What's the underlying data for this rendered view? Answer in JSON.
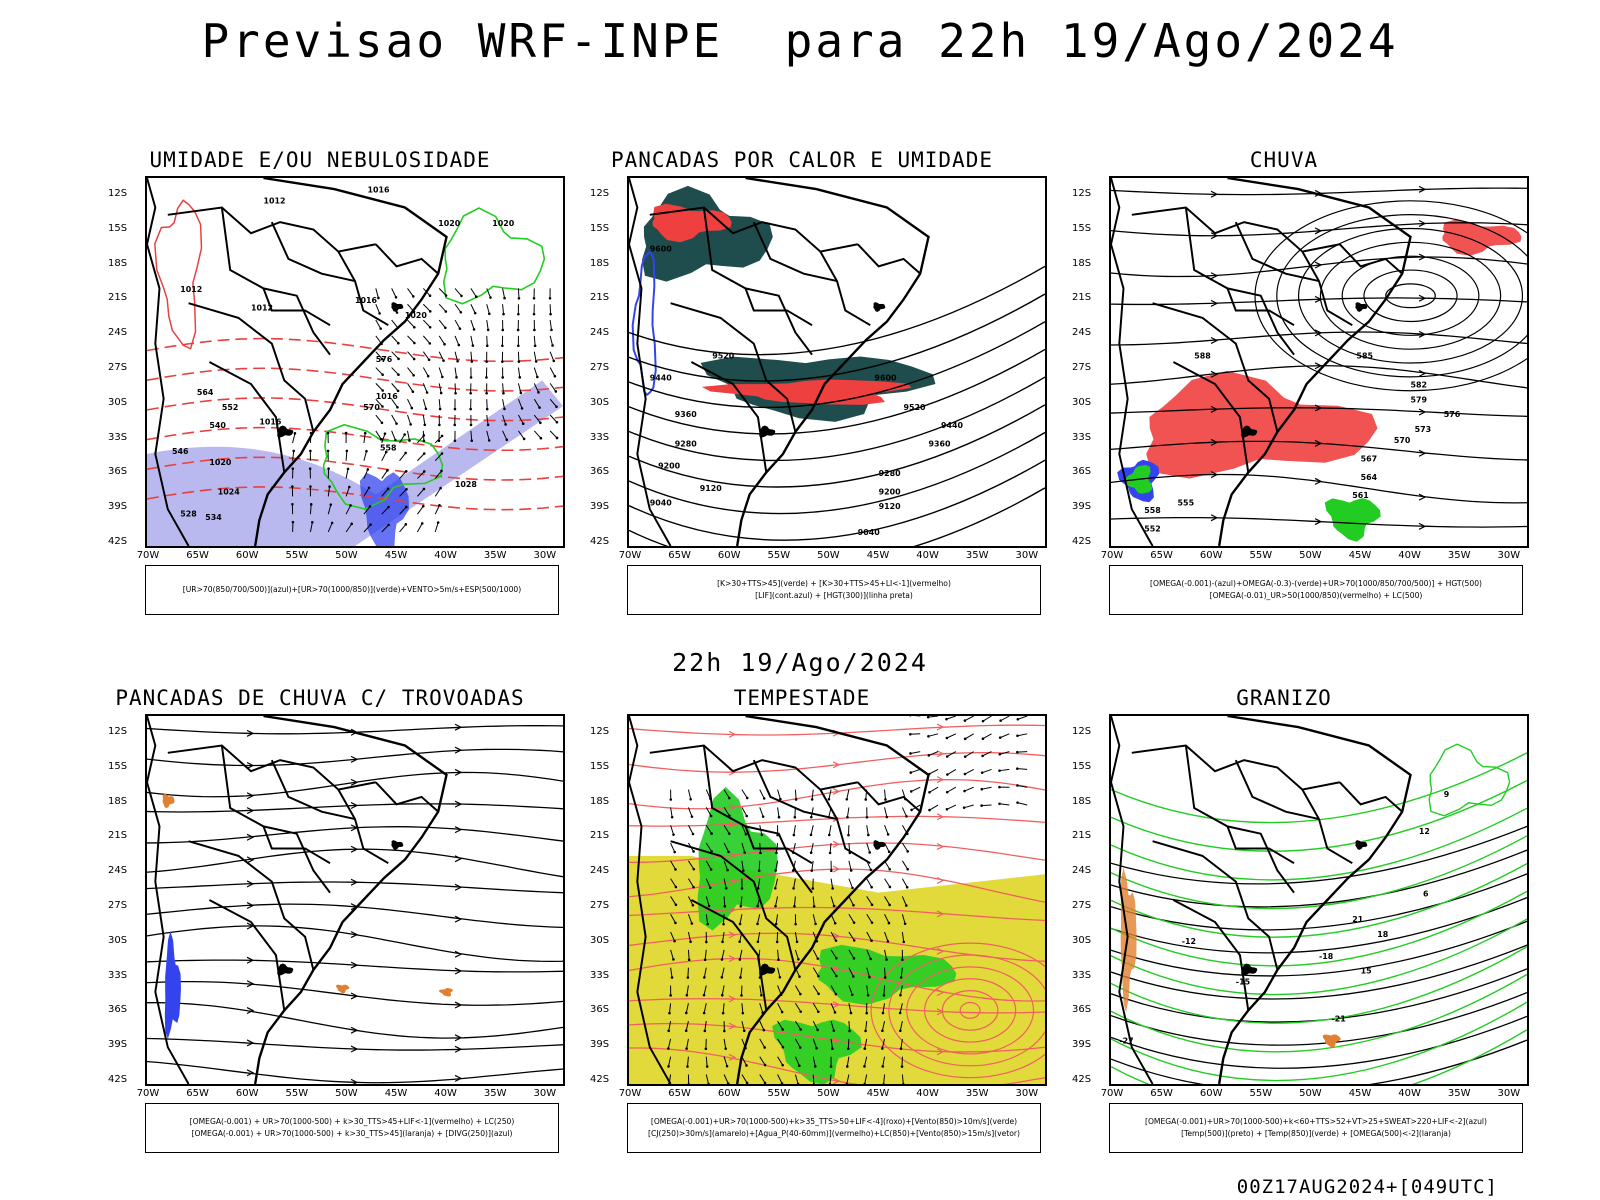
{
  "header": {
    "title": "Previsao WRF-INPE  para 22h 19/Ago/2024",
    "mid_title": "22h 19/Ago/2024",
    "footer": "00Z17AUG2024+[049UTC]"
  },
  "axes": {
    "lat_labels": [
      "12S",
      "15S",
      "18S",
      "21S",
      "24S",
      "27S",
      "30S",
      "33S",
      "36S",
      "39S",
      "42S"
    ],
    "lon_labels": [
      "70W",
      "65W",
      "60W",
      "55W",
      "50W",
      "45W",
      "40W",
      "35W",
      "30W"
    ]
  },
  "panels": [
    {
      "title": "UMIDADE E/OU NEBULOSIDADE",
      "legend": [
        "[UR>70(850/700/500)](azul)+[UR>70(1000/850)](verde)+VENTO>5m/s+ESP(500/1000)"
      ],
      "labels": [
        "1012",
        "1016",
        "1020",
        "1020",
        "1012",
        "1016",
        "1020",
        "1012",
        "1016",
        "1016",
        "1020",
        "1024",
        "1028",
        "570",
        "576",
        "564",
        "558",
        "552",
        "546",
        "540",
        "534",
        "528"
      ]
    },
    {
      "title": "PANCADAS POR CALOR E UMIDADE",
      "legend": [
        "[K>30+TTS>45](verde) + [K>30+TTS>45+LI<-1](vermelho)",
        "[LIF](cont.azul) + [HGT(300)](linha preta)"
      ],
      "labels": [
        "9600",
        "9520",
        "9440",
        "9360",
        "9280",
        "9200",
        "9120",
        "9040",
        "9600",
        "9520",
        "9440",
        "9360",
        "9280",
        "9200",
        "9120",
        "9040"
      ]
    },
    {
      "title": "CHUVA",
      "legend": [
        "[OMEGA(-0.001)-(azul)+OMEGA(-0.3)-(verde)+UR>70(1000/850/700/500)] + HGT(500)",
        "[OMEGA(-0.01)_UR>50(1000/850)(vermelho) + LC(500)"
      ],
      "labels": [
        "588",
        "585",
        "582",
        "579",
        "576",
        "573",
        "570",
        "567",
        "564",
        "561",
        "558",
        "555",
        "552"
      ]
    },
    {
      "title": "PANCADAS DE CHUVA C/ TROVOADAS",
      "legend": [
        "[OMEGA(-0.001) + UR>70(1000-500) + k>30_TTS>45+LIF<-1](vermelho) + LC(250)",
        "[OMEGA(-0.001) + UR>70(1000-500) + k>30_TTS>45](laranja) + [DIVG(250)](azul)"
      ],
      "labels": []
    },
    {
      "title": "TEMPESTADE",
      "legend": [
        "[OMEGA(-0.001)+UR>70(1000-500)+k>35_TTS>50+LIF<-4](roxo)+[Vento(850)>10m/s](verde)",
        "[CJ(250)>30m/s](amarelo)+[Agua_P(40-60mm)](vermelho)+LC(850)+[Vento(850)>15m/s](vetor)"
      ],
      "labels": []
    },
    {
      "title": "GRANIZO",
      "legend": [
        "[OMEGA(-0.001)+UR>70(1000-500)+k<60+TTS>52+VT>25+SWEAT>220+LIF<-2](azul)",
        "[Temp(500)](preto) + [Temp(850)](verde) + [OMEGA(500)<-2](laranja)"
      ],
      "labels": [
        "-12",
        "-15",
        "-18",
        "-21",
        "-27",
        "12",
        "15",
        "18",
        "21",
        "9",
        "6"
      ]
    }
  ],
  "colors": {
    "border": "#000000",
    "red_fill": "#ef4040",
    "teal_fill": "#1f4d4d",
    "green": "#22cc22",
    "blue": "#3344ee",
    "lavender": "#a7a7ec",
    "yellow": "#e2d93a",
    "streamline_red": "#f06060"
  }
}
